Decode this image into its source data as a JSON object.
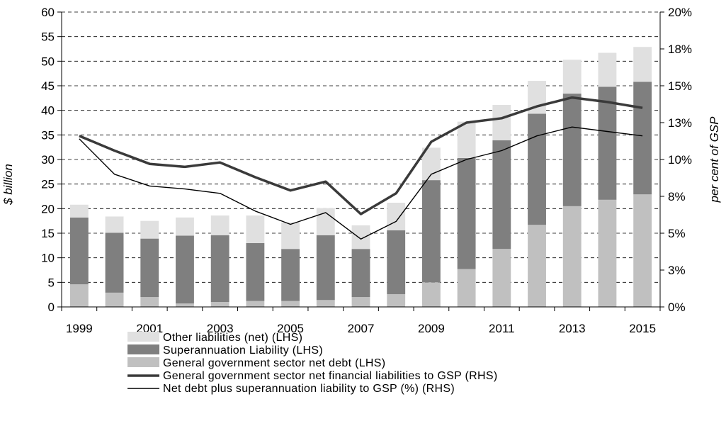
{
  "chart_data": {
    "type": "bar",
    "stacked": true,
    "categories": [
      1999,
      2000,
      2001,
      2002,
      2003,
      2004,
      2005,
      2006,
      2007,
      2008,
      2009,
      2010,
      2011,
      2012,
      2013,
      2014,
      2015
    ],
    "x_tick_labels": [
      "1999",
      "2001",
      "2003",
      "2005",
      "2007",
      "2009",
      "2011",
      "2013",
      "2015"
    ],
    "ylabel": "$ billion",
    "ylabel_right": "per cent of GSP",
    "ylim": [
      0,
      60
    ],
    "y_ticks": [
      "0",
      "5",
      "10",
      "15",
      "20",
      "25",
      "30",
      "35",
      "40",
      "45",
      "50",
      "55",
      "60"
    ],
    "ylim_right": [
      0,
      20
    ],
    "y_ticks_right": [
      "0%",
      "3%",
      "5%",
      "8%",
      "10%",
      "13%",
      "15%",
      "18%",
      "20%"
    ],
    "grid": "horizontal dashed",
    "legend_position": "bottom",
    "bar_series": [
      {
        "name": "General government sector net debt (LHS)",
        "color": "#c0c0c0",
        "values": [
          4.6,
          2.9,
          2.0,
          0.7,
          1.0,
          1.2,
          1.2,
          1.4,
          2.0,
          2.6,
          5.0,
          7.7,
          11.8,
          16.7,
          20.5,
          21.8,
          22.9
        ]
      },
      {
        "name": "Superannuation Liability (LHS)",
        "color": "#7f7f7f",
        "values": [
          13.6,
          12.2,
          11.9,
          13.8,
          13.6,
          11.8,
          10.6,
          13.2,
          9.8,
          13.0,
          20.8,
          22.6,
          22.1,
          22.6,
          22.9,
          23.0,
          22.9
        ]
      },
      {
        "name": "Other liabilities (net) (LHS)",
        "color": "#e0e0e0",
        "values": [
          2.6,
          3.3,
          3.6,
          3.7,
          4.0,
          5.6,
          5.4,
          5.5,
          4.8,
          5.6,
          6.6,
          7.4,
          7.2,
          6.7,
          6.9,
          6.9,
          7.1
        ]
      }
    ],
    "line_series": [
      {
        "name": "General government sector net financial liabilities to GSP (RHS)",
        "color": "#3a3a3a",
        "width": "thick",
        "values": [
          11.6,
          10.6,
          9.7,
          9.5,
          9.8,
          8.8,
          7.9,
          8.5,
          6.3,
          7.7,
          11.2,
          12.5,
          12.8,
          13.6,
          14.2,
          13.9,
          13.5
        ]
      },
      {
        "name": "Net debt plus superannuation liability to GSP (%) (RHS)",
        "color": "#000000",
        "width": "thin",
        "values": [
          11.4,
          9.0,
          8.2,
          8.0,
          7.7,
          6.5,
          5.6,
          6.4,
          4.6,
          5.8,
          9.0,
          10.0,
          10.6,
          11.6,
          12.2,
          11.9,
          11.6
        ]
      }
    ],
    "legend": [
      "Other liabilities (net) (LHS)",
      "Superannuation Liability (LHS)",
      "General government sector net debt (LHS)",
      "General government sector net financial liabilities to GSP (RHS)",
      "Net debt plus superannuation liability to GSP (%) (RHS)"
    ]
  }
}
